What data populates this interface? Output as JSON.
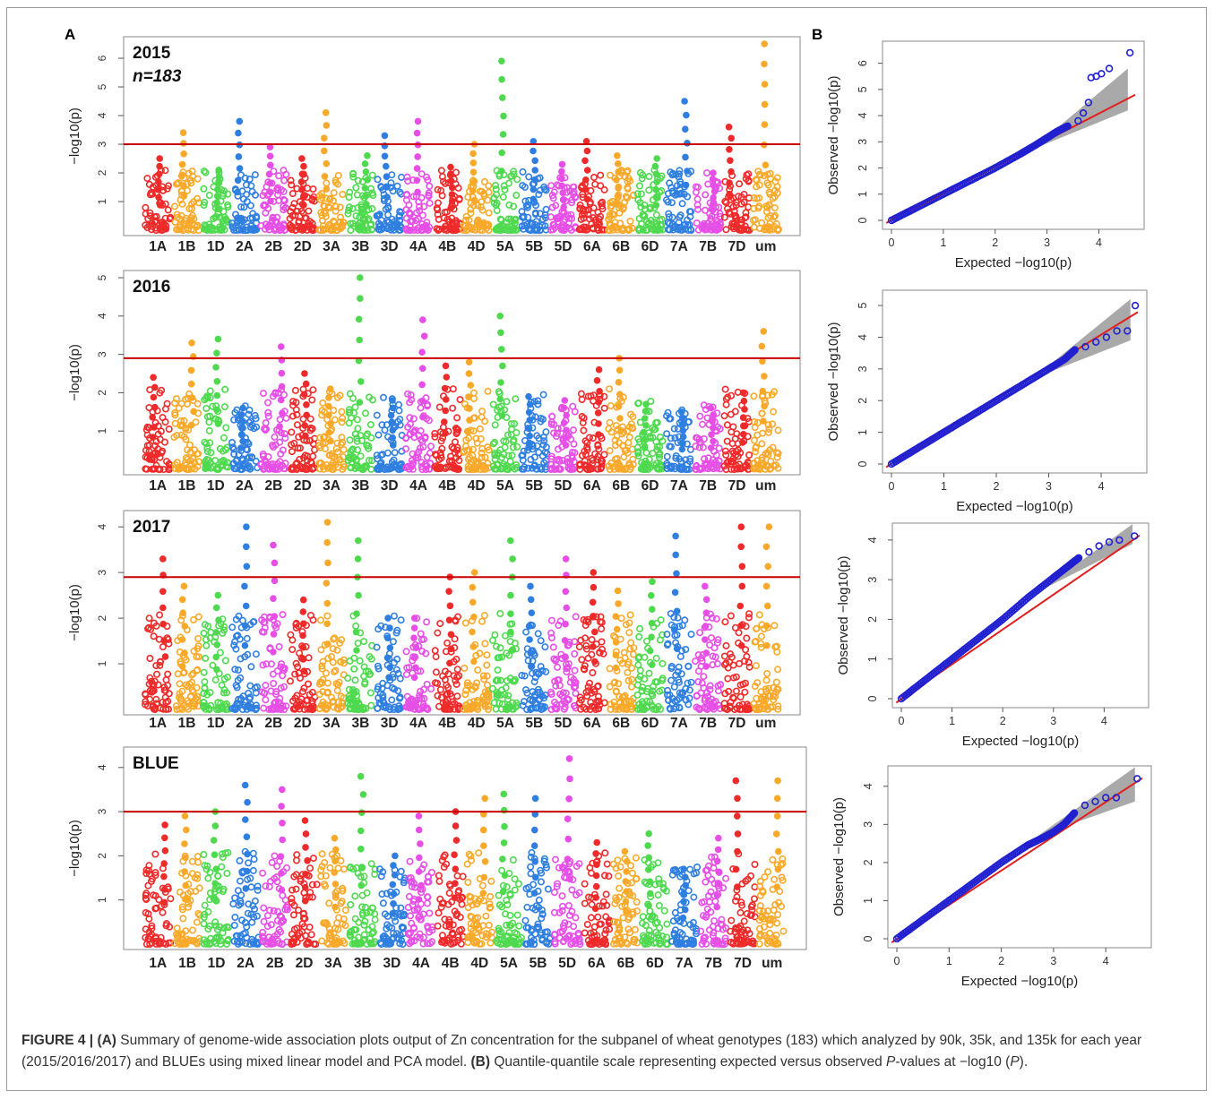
{
  "figure": {
    "panel_a_label": "A",
    "panel_b_label": "B",
    "caption": {
      "label": "FIGURE 4 |",
      "part_a_tag": "(A)",
      "part_a_text": " Summary of genome-wide association plots output of Zn concentration for the subpanel of wheat genotypes (183) which analyzed by 90k, 35k, and 135k for each year (2015/2016/2017) and BLUEs using mixed linear model and PCA model. ",
      "part_b_tag": "(B)",
      "part_b_text": " Quantile-quantile scale representing expected versus observed ",
      "p_italic": "P",
      "tail": "-values at −log10 (",
      "p_italic2": "P",
      "end": ")."
    }
  },
  "chart_data": [
    {
      "type": "scatter",
      "kind": "manhattan",
      "title": "2015",
      "subtitle": "n=183",
      "ylabel": "−log10(p)",
      "ylim": [
        0,
        6.5
      ],
      "yticks": [
        1,
        2,
        3,
        4,
        5,
        6
      ],
      "threshold": 3.0,
      "chromosomes": [
        "1A",
        "1B",
        "1D",
        "2A",
        "2B",
        "2D",
        "3A",
        "3B",
        "3D",
        "4A",
        "4B",
        "4D",
        "5A",
        "5B",
        "5D",
        "6A",
        "6B",
        "6D",
        "7A",
        "7B",
        "7D",
        "um"
      ],
      "peaks": [
        2.5,
        3.4,
        2.1,
        3.8,
        2.9,
        2.5,
        4.1,
        2.6,
        3.3,
        3.8,
        2.2,
        3.0,
        5.9,
        3.1,
        2.3,
        3.1,
        2.6,
        2.5,
        4.5,
        2.0,
        3.6,
        6.5
      ],
      "colors": [
        "#ee2a2a",
        "#f9a92a",
        "#4fd94f",
        "#2f7fe0",
        "#e64fe6",
        "#ee2a2a",
        "#f9a92a",
        "#4fd94f",
        "#2f7fe0",
        "#e64fe6",
        "#ee2a2a",
        "#f9a92a",
        "#4fd94f",
        "#2f7fe0",
        "#e64fe6",
        "#ee2a2a",
        "#f9a92a",
        "#4fd94f",
        "#2f7fe0",
        "#e64fe6",
        "#ee2a2a",
        "#f9a92a"
      ]
    },
    {
      "type": "scatter",
      "kind": "manhattan",
      "title": "2016",
      "ylabel": "−log10(p)",
      "ylim": [
        0,
        5.0
      ],
      "yticks": [
        1,
        2,
        3,
        4,
        5
      ],
      "threshold": 2.9,
      "chromosomes": [
        "1A",
        "1B",
        "1D",
        "2A",
        "2B",
        "2D",
        "3A",
        "3B",
        "3D",
        "4A",
        "4B",
        "4D",
        "5A",
        "5B",
        "5D",
        "6A",
        "6B",
        "6D",
        "7A",
        "7B",
        "7D",
        "um"
      ],
      "peaks": [
        2.4,
        3.3,
        3.4,
        1.6,
        3.2,
        2.5,
        2.1,
        5.0,
        1.8,
        3.9,
        2.7,
        2.8,
        4.0,
        1.9,
        1.8,
        2.6,
        2.9,
        1.7,
        1.5,
        1.6,
        2.0,
        3.6
      ],
      "colors": [
        "#ee2a2a",
        "#f9a92a",
        "#4fd94f",
        "#2f7fe0",
        "#e64fe6",
        "#ee2a2a",
        "#f9a92a",
        "#4fd94f",
        "#2f7fe0",
        "#e64fe6",
        "#ee2a2a",
        "#f9a92a",
        "#4fd94f",
        "#2f7fe0",
        "#e64fe6",
        "#ee2a2a",
        "#f9a92a",
        "#4fd94f",
        "#2f7fe0",
        "#e64fe6",
        "#ee2a2a",
        "#f9a92a"
      ]
    },
    {
      "type": "scatter",
      "kind": "manhattan",
      "title": "2017",
      "ylabel": "−log10(p)",
      "ylim": [
        0,
        4.2
      ],
      "yticks": [
        1,
        2,
        3,
        4
      ],
      "threshold": 2.9,
      "chromosomes": [
        "1A",
        "1B",
        "1D",
        "2A",
        "2B",
        "2D",
        "3A",
        "3B",
        "3D",
        "4A",
        "4B",
        "4D",
        "5A",
        "5B",
        "5D",
        "6A",
        "6B",
        "6D",
        "7A",
        "7B",
        "7D",
        "um"
      ],
      "peaks": [
        3.3,
        2.7,
        2.5,
        4.0,
        3.6,
        2.4,
        4.1,
        3.7,
        2.0,
        2.0,
        2.9,
        3.0,
        3.7,
        2.7,
        3.3,
        3.0,
        2.6,
        2.8,
        3.8,
        2.7,
        4.0,
        4.0
      ],
      "colors": [
        "#ee2a2a",
        "#f9a92a",
        "#4fd94f",
        "#2f7fe0",
        "#e64fe6",
        "#ee2a2a",
        "#f9a92a",
        "#4fd94f",
        "#2f7fe0",
        "#e64fe6",
        "#ee2a2a",
        "#f9a92a",
        "#4fd94f",
        "#2f7fe0",
        "#e64fe6",
        "#ee2a2a",
        "#f9a92a",
        "#4fd94f",
        "#2f7fe0",
        "#e64fe6",
        "#ee2a2a",
        "#f9a92a"
      ]
    },
    {
      "type": "scatter",
      "kind": "manhattan",
      "title": "BLUE",
      "ylabel": "−log10(p)",
      "ylim": [
        0,
        4.3
      ],
      "yticks": [
        1,
        2,
        3,
        4
      ],
      "threshold": 3.0,
      "chromosomes": [
        "1A",
        "1B",
        "1D",
        "2A",
        "2B",
        "2D",
        "3A",
        "3B",
        "3D",
        "4A",
        "4B",
        "4D",
        "5A",
        "5B",
        "5D",
        "6A",
        "6B",
        "6D",
        "7A",
        "7B",
        "7D",
        "um"
      ],
      "peaks": [
        2.7,
        2.9,
        3.0,
        3.6,
        3.5,
        2.8,
        2.4,
        3.8,
        2.0,
        2.9,
        3.0,
        3.3,
        3.4,
        3.3,
        4.2,
        2.3,
        2.1,
        2.5,
        1.7,
        2.4,
        3.7,
        3.7
      ],
      "colors": [
        "#ee2a2a",
        "#f9a92a",
        "#4fd94f",
        "#2f7fe0",
        "#e64fe6",
        "#ee2a2a",
        "#f9a92a",
        "#4fd94f",
        "#2f7fe0",
        "#e64fe6",
        "#ee2a2a",
        "#f9a92a",
        "#4fd94f",
        "#2f7fe0",
        "#e64fe6",
        "#ee2a2a",
        "#f9a92a",
        "#4fd94f",
        "#2f7fe0",
        "#e64fe6",
        "#ee2a2a",
        "#f9a92a"
      ]
    },
    {
      "type": "scatter",
      "kind": "qq",
      "xlabel": "Expected −log10(p)",
      "ylabel": "Observed −log10(p)",
      "xlim": [
        0,
        4.7
      ],
      "ylim": [
        0,
        6.5
      ],
      "xticks": [
        0,
        1,
        2,
        3,
        4
      ],
      "yticks": [
        0,
        1,
        2,
        3,
        4,
        5,
        6
      ],
      "points": [
        [
          0,
          0
        ],
        [
          0.5,
          0.5
        ],
        [
          1,
          1
        ],
        [
          1.5,
          1.5
        ],
        [
          2,
          2
        ],
        [
          2.5,
          2.55
        ],
        [
          2.8,
          2.9
        ],
        [
          3.0,
          3.15
        ],
        [
          3.2,
          3.4
        ],
        [
          3.4,
          3.6
        ],
        [
          3.6,
          3.8
        ],
        [
          3.7,
          4.1
        ],
        [
          3.8,
          4.5
        ],
        [
          3.85,
          5.45
        ],
        [
          3.95,
          5.5
        ],
        [
          4.05,
          5.6
        ],
        [
          4.2,
          5.8
        ],
        [
          4.6,
          6.4
        ]
      ],
      "band_end_low": 4.2,
      "band_end_high": 5.8,
      "line_color": "#e02020",
      "point_color": "#2020d0"
    },
    {
      "type": "scatter",
      "kind": "qq",
      "xlabel": "Expected −log10(p)",
      "ylabel": "Observed −log10(p)",
      "xlim": [
        0,
        4.7
      ],
      "ylim": [
        0,
        5.2
      ],
      "xticks": [
        0,
        1,
        2,
        3,
        4
      ],
      "yticks": [
        0,
        1,
        2,
        3,
        4,
        5
      ],
      "points": [
        [
          0,
          0
        ],
        [
          0.5,
          0.5
        ],
        [
          1,
          1
        ],
        [
          1.5,
          1.5
        ],
        [
          2,
          2
        ],
        [
          2.5,
          2.5
        ],
        [
          3.0,
          3.0
        ],
        [
          3.3,
          3.3
        ],
        [
          3.5,
          3.6
        ],
        [
          3.7,
          3.7
        ],
        [
          3.9,
          3.85
        ],
        [
          4.1,
          4.0
        ],
        [
          4.3,
          4.2
        ],
        [
          4.5,
          4.2
        ],
        [
          4.65,
          5.0
        ]
      ],
      "band_end_low": 3.9,
      "band_end_high": 5.2,
      "line_color": "#e02020",
      "point_color": "#2020d0"
    },
    {
      "type": "scatter",
      "kind": "qq",
      "xlabel": "Expected −log10(p)",
      "ylabel": "Observed −log10(p)",
      "xlim": [
        0,
        4.7
      ],
      "ylim": [
        0,
        4.2
      ],
      "xticks": [
        0,
        1,
        2,
        3,
        4
      ],
      "yticks": [
        0,
        1,
        2,
        3,
        4
      ],
      "points": [
        [
          0,
          0
        ],
        [
          0.5,
          0.5
        ],
        [
          1,
          1
        ],
        [
          1.5,
          1.5
        ],
        [
          2,
          2
        ],
        [
          2.5,
          2.55
        ],
        [
          3.0,
          3.05
        ],
        [
          3.3,
          3.35
        ],
        [
          3.5,
          3.55
        ],
        [
          3.7,
          3.7
        ],
        [
          3.9,
          3.85
        ],
        [
          4.1,
          3.95
        ],
        [
          4.3,
          4.0
        ],
        [
          4.6,
          4.1
        ]
      ],
      "band_end_low": 3.9,
      "band_end_high": 4.4,
      "line_color": "#e02020",
      "point_color": "#2020d0"
    },
    {
      "type": "scatter",
      "kind": "qq",
      "xlabel": "Expected −log10(p)",
      "ylabel": "Observed −log10(p)",
      "xlim": [
        0,
        4.7
      ],
      "ylim": [
        0,
        4.3
      ],
      "xticks": [
        0,
        1,
        2,
        3,
        4
      ],
      "yticks": [
        0,
        1,
        2,
        3,
        4
      ],
      "points": [
        [
          0,
          0
        ],
        [
          0.5,
          0.5
        ],
        [
          1,
          1
        ],
        [
          1.5,
          1.5
        ],
        [
          2,
          2
        ],
        [
          2.5,
          2.45
        ],
        [
          2.8,
          2.65
        ],
        [
          3.0,
          2.8
        ],
        [
          3.2,
          3.0
        ],
        [
          3.4,
          3.3
        ],
        [
          3.6,
          3.5
        ],
        [
          3.8,
          3.6
        ],
        [
          4.0,
          3.7
        ],
        [
          4.2,
          3.7
        ],
        [
          4.6,
          4.2
        ]
      ],
      "band_end_low": 3.6,
      "band_end_high": 4.5,
      "line_color": "#e02020",
      "point_color": "#2020d0"
    }
  ]
}
